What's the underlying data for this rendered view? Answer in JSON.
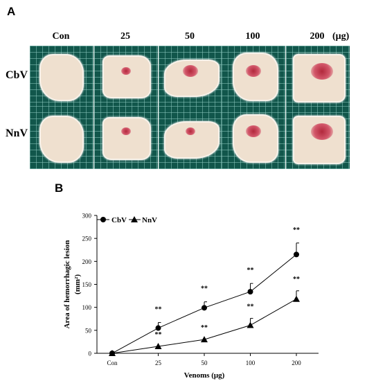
{
  "panel_a": {
    "label": "A",
    "columns": [
      "Con",
      "25",
      "50",
      "100",
      "200"
    ],
    "unit": "(μg)",
    "rows": [
      {
        "label": "CbV",
        "lesions": [
          0,
          1,
          2,
          2,
          3
        ]
      },
      {
        "label": "NnV",
        "lesions": [
          0,
          1,
          1,
          2,
          3
        ]
      }
    ],
    "photo_background": "#11564b",
    "skin_color": "#efe0cf",
    "lesion_color": "#b2283c"
  },
  "panel_b": {
    "label": "B"
  },
  "chart_data": {
    "type": "line",
    "categories": [
      "Con",
      "25",
      "50",
      "100",
      "200"
    ],
    "series": [
      {
        "name": "CbV",
        "marker": "circle",
        "values": [
          0,
          55,
          99,
          134,
          215
        ],
        "errors": [
          0,
          12,
          13,
          18,
          25
        ],
        "significance": [
          "",
          "**",
          "**",
          "**",
          "**"
        ]
      },
      {
        "name": "NnV",
        "marker": "triangle",
        "values": [
          0,
          15,
          30,
          61,
          118
        ],
        "errors": [
          0,
          0,
          0,
          15,
          18
        ],
        "significance": [
          "",
          "**",
          "**",
          "**",
          "**"
        ]
      }
    ],
    "xlabel": "Venoms (μg)",
    "ylabel_line1": "Area of hemorrhagic lesion",
    "ylabel_line2": "(mm²)",
    "ylim": [
      0,
      300
    ],
    "yticks": [
      0,
      50,
      100,
      150,
      200,
      250,
      300
    ],
    "grid": false,
    "legend_position": "top-left"
  }
}
